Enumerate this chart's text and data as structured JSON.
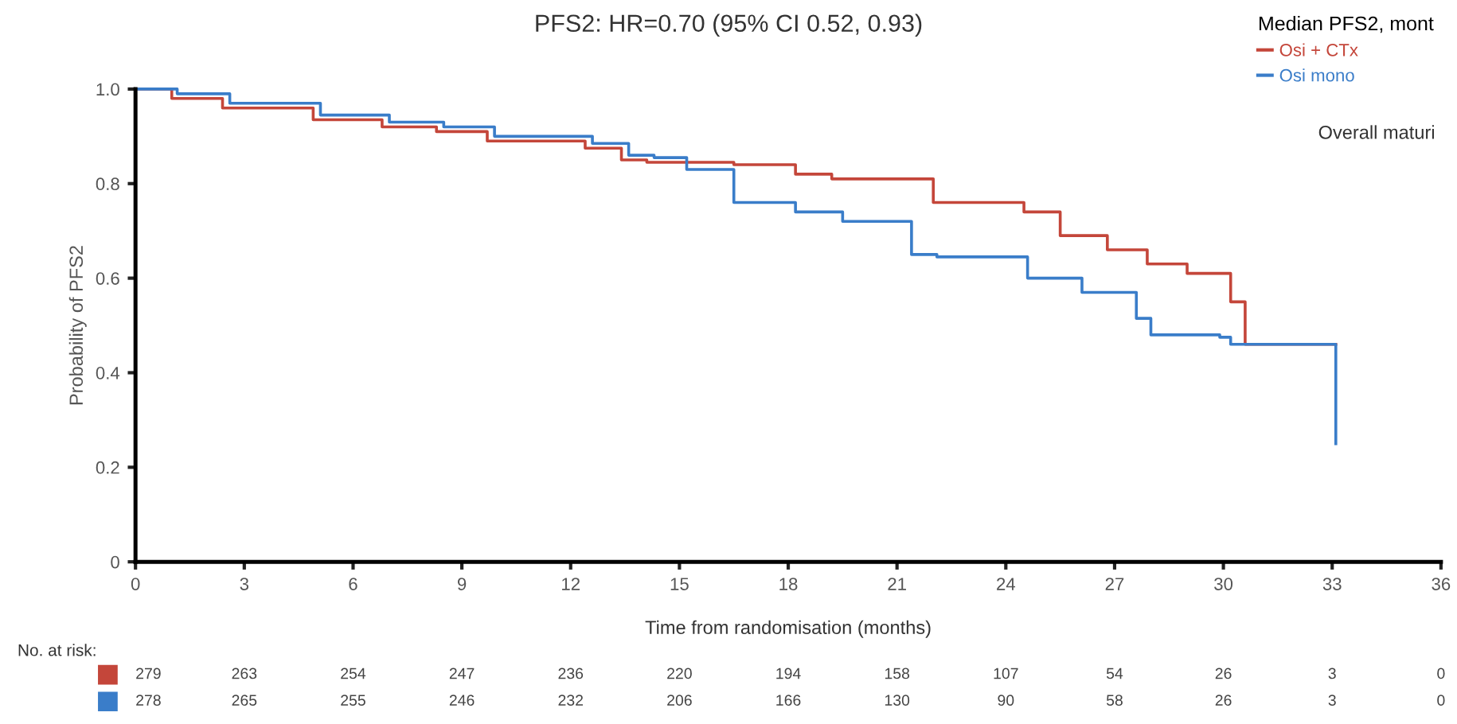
{
  "chart_data": {
    "type": "step",
    "title": "PFS2: HR=0.70 (95% CI 0.52, 0.93)",
    "xlabel": "Time from randomisation (months)",
    "ylabel": "Probability of PFS2",
    "legend_title": "Median PFS2, mont",
    "xlim": [
      0,
      36
    ],
    "xticks": [
      0,
      3,
      6,
      9,
      12,
      15,
      18,
      21,
      24,
      27,
      30,
      33,
      36
    ],
    "ylim": [
      0,
      1.0
    ],
    "yticks": [
      0,
      {
        "value": 0.2,
        "label": "0.2"
      },
      {
        "value": 0.4,
        "label": "0.4"
      },
      {
        "value": 0.6,
        "label": "0.6"
      },
      {
        "value": 0.8,
        "label": "0.8"
      },
      {
        "value": 1.0,
        "label": "1.0"
      }
    ],
    "grid": false,
    "legend": "top right",
    "line_style": "solid",
    "marker": "none",
    "series": [
      {
        "name": "Osi + CTx",
        "color": "#c4463a",
        "x": [
          0,
          1.0,
          2.4,
          3.8,
          4.9,
          6.8,
          8.3,
          9.7,
          12.4,
          13.4,
          14.1,
          16.5,
          18.2,
          19.2,
          22.0,
          24.5,
          25.5,
          26.8,
          27.9,
          29.0,
          30.2,
          30.6,
          33.1
        ],
        "values": [
          1.0,
          0.98,
          0.96,
          0.96,
          0.935,
          0.92,
          0.91,
          0.89,
          0.875,
          0.85,
          0.845,
          0.84,
          0.82,
          0.81,
          0.76,
          0.74,
          0.69,
          0.66,
          0.63,
          0.61,
          0.55,
          0.46,
          0.46
        ]
      },
      {
        "name": "Osi mono",
        "color": "#3a7dc9",
        "x": [
          0,
          1.15,
          2.6,
          3.8,
          5.1,
          7.0,
          8.5,
          9.9,
          12.6,
          13.6,
          14.3,
          15.2,
          16.5,
          18.2,
          19.5,
          21.4,
          22.1,
          24.6,
          26.1,
          27.6,
          28.0,
          29.9,
          30.2,
          33.1
        ],
        "values": [
          1.0,
          0.99,
          0.97,
          0.97,
          0.945,
          0.93,
          0.92,
          0.9,
          0.885,
          0.86,
          0.855,
          0.83,
          0.76,
          0.74,
          0.72,
          0.65,
          0.645,
          0.6,
          0.57,
          0.515,
          0.48,
          0.475,
          0.46,
          0.25
        ]
      }
    ],
    "annotations": [
      "Overall maturi",
      "No. at risk:",
      "279 263 254 247 236 220 194 158 107 54 26 3 0",
      "278 265 255 246 232 206 166 130 90 58 26 3 0"
    ]
  }
}
